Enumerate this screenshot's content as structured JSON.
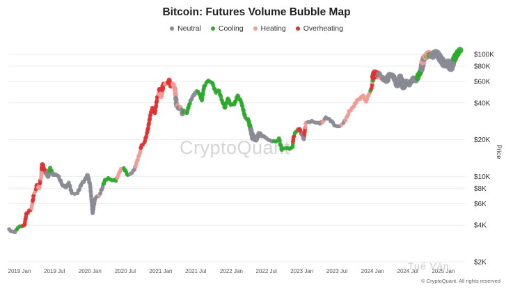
{
  "title": "Bitcoin: Futures Volume Bubble Map",
  "legend": [
    {
      "label": "Neutral",
      "color": "#8a8a94"
    },
    {
      "label": "Cooling",
      "color": "#2ea82e"
    },
    {
      "label": "Heating",
      "color": "#f29a94"
    },
    {
      "label": "Overheating",
      "color": "#e03131"
    }
  ],
  "watermark": "CryptoQuant",
  "credit": "© CryptoQuant. All rights reserved",
  "logo_text": "Tuế Văn",
  "chart_data": {
    "type": "scatter",
    "title": "Bitcoin: Futures Volume Bubble Map",
    "ylabel": "Price",
    "y_scale": "log",
    "ylim": [
      2000,
      130000
    ],
    "xlim": [
      "2019-01-01",
      "2025-06-01"
    ],
    "x_ticks": [
      "2019 Jan",
      "2019 Jul",
      "2020 Jan",
      "2020 Jul",
      "2021 Jan",
      "2021 Jul",
      "2022 Jan",
      "2022 Jul",
      "2023 Jan",
      "2023 Jul",
      "2024 Jan",
      "2024 Jul",
      "2025 Jan"
    ],
    "y_ticks": [
      {
        "value": 2000,
        "label": "$2K"
      },
      {
        "value": 4000,
        "label": "$4K"
      },
      {
        "value": 6000,
        "label": "$6K"
      },
      {
        "value": 8000,
        "label": "$8K"
      },
      {
        "value": 10000,
        "label": "$10K"
      },
      {
        "value": 20000,
        "label": "$20K"
      },
      {
        "value": 40000,
        "label": "$40K"
      },
      {
        "value": 60000,
        "label": "$60K"
      },
      {
        "value": 80000,
        "label": "$80K"
      },
      {
        "value": 100000,
        "label": "$100K"
      }
    ],
    "grid": "horizontal",
    "legend_position": "top-center",
    "series": [
      {
        "name": "Neutral",
        "color": "#8a8a94",
        "points": [
          [
            "2019-01-05",
            3700,
            1
          ],
          [
            "2019-01-20",
            3550,
            1
          ],
          [
            "2019-02-05",
            3500,
            1
          ],
          [
            "2019-07-25",
            10000,
            1.5
          ],
          [
            "2019-08-20",
            10400,
            1.5
          ],
          [
            "2019-09-15",
            10100,
            1
          ],
          [
            "2019-10-10",
            8400,
            1
          ],
          [
            "2019-10-25",
            8200,
            1.5
          ],
          [
            "2019-11-10",
            8900,
            1
          ],
          [
            "2019-11-25",
            7300,
            1
          ],
          [
            "2019-12-10",
            7200,
            1
          ],
          [
            "2019-12-25",
            7300,
            1
          ],
          [
            "2020-01-15",
            8700,
            1
          ],
          [
            "2020-02-01",
            9400,
            1
          ],
          [
            "2020-02-14",
            10200,
            1.5
          ],
          [
            "2020-02-28",
            8600,
            1
          ],
          [
            "2020-03-12",
            5000,
            1
          ],
          [
            "2020-03-25",
            6600,
            1
          ],
          [
            "2020-04-10",
            6900,
            1
          ],
          [
            "2020-04-28",
            7800,
            1
          ],
          [
            "2020-10-01",
            10700,
            1
          ],
          [
            "2020-10-15",
            11400,
            1
          ],
          [
            "2021-05-20",
            38000,
            1.5
          ],
          [
            "2021-06-01",
            36000,
            1.5
          ],
          [
            "2021-06-20",
            32500,
            1.5
          ],
          [
            "2021-07-05",
            34000,
            1
          ],
          [
            "2021-08-10",
            45000,
            1
          ],
          [
            "2021-08-25",
            48000,
            1.5
          ],
          [
            "2021-09-01",
            50000,
            1
          ],
          [
            "2022-06-20",
            20500,
            2
          ],
          [
            "2022-07-05",
            20000,
            2
          ],
          [
            "2022-07-20",
            22500,
            1.5
          ],
          [
            "2022-08-20",
            21000,
            1
          ],
          [
            "2022-09-15",
            19800,
            1
          ],
          [
            "2023-03-10",
            20200,
            1
          ],
          [
            "2023-04-01",
            28000,
            1
          ],
          [
            "2023-04-20",
            28500,
            1
          ],
          [
            "2023-05-10",
            27500,
            1
          ],
          [
            "2023-06-01",
            27000,
            1
          ],
          [
            "2023-07-01",
            30500,
            1
          ],
          [
            "2023-07-20",
            29500,
            1
          ],
          [
            "2023-08-20",
            26000,
            1
          ],
          [
            "2023-09-10",
            25800,
            1
          ],
          [
            "2023-10-01",
            27500,
            1
          ],
          [
            "2024-04-01",
            69000,
            2
          ],
          [
            "2024-04-20",
            64000,
            2
          ],
          [
            "2024-05-10",
            61000,
            2.5
          ],
          [
            "2024-05-25",
            68000,
            2
          ],
          [
            "2024-06-10",
            67000,
            2
          ],
          [
            "2024-06-25",
            61000,
            2
          ],
          [
            "2024-07-05",
            56000,
            2.5
          ],
          [
            "2024-07-20",
            66000,
            2
          ],
          [
            "2024-08-05",
            54000,
            2.5
          ],
          [
            "2024-08-20",
            60000,
            2
          ],
          [
            "2024-09-05",
            56500,
            2
          ],
          [
            "2024-09-25",
            63500,
            2
          ],
          [
            "2024-10-10",
            61000,
            2
          ],
          [
            "2024-11-10",
            80000,
            2.5
          ],
          [
            "2024-11-25",
            95000,
            2.5
          ],
          [
            "2025-01-05",
            97000,
            3
          ],
          [
            "2025-01-20",
            103000,
            3
          ],
          [
            "2025-02-05",
            97000,
            3
          ],
          [
            "2025-02-25",
            86000,
            3
          ],
          [
            "2025-03-10",
            82000,
            3
          ],
          [
            "2025-03-25",
            86000,
            3
          ],
          [
            "2025-04-08",
            77000,
            3
          ],
          [
            "2025-04-20",
            87000,
            2.5
          ]
        ]
      },
      {
        "name": "Cooling",
        "color": "#2ea82e",
        "points": [
          [
            "2019-02-20",
            3800,
            1
          ],
          [
            "2019-03-10",
            3900,
            1
          ],
          [
            "2019-08-05",
            11800,
            1
          ],
          [
            "2019-08-15",
            10800,
            1
          ],
          [
            "2020-05-15",
            9400,
            1
          ],
          [
            "2020-06-01",
            9700,
            1
          ],
          [
            "2020-06-20",
            9300,
            1
          ],
          [
            "2020-07-10",
            9200,
            1
          ],
          [
            "2020-08-20",
            11700,
            1
          ],
          [
            "2020-09-10",
            10300,
            1
          ],
          [
            "2021-06-28",
            34500,
            1
          ],
          [
            "2021-07-12",
            33000,
            1
          ],
          [
            "2021-07-25",
            39000,
            1
          ],
          [
            "2021-09-15",
            47500,
            1
          ],
          [
            "2021-09-28",
            42000,
            1
          ],
          [
            "2021-10-10",
            55000,
            1
          ],
          [
            "2021-11-01",
            61000,
            1
          ],
          [
            "2021-11-20",
            58500,
            1
          ],
          [
            "2021-12-10",
            48500,
            1
          ],
          [
            "2021-12-25",
            50500,
            1
          ],
          [
            "2022-01-10",
            42000,
            1
          ],
          [
            "2022-01-25",
            36500,
            1
          ],
          [
            "2022-02-10",
            43500,
            1
          ],
          [
            "2022-02-25",
            38500,
            1
          ],
          [
            "2022-03-15",
            39000,
            1
          ],
          [
            "2022-04-01",
            46000,
            1
          ],
          [
            "2022-04-20",
            40500,
            1
          ],
          [
            "2022-05-10",
            30500,
            1
          ],
          [
            "2022-05-25",
            29500,
            1
          ],
          [
            "2022-10-15",
            19300,
            1
          ],
          [
            "2022-11-01",
            20500,
            1
          ],
          [
            "2022-11-15",
            16500,
            1
          ],
          [
            "2022-12-05",
            17000,
            1
          ],
          [
            "2022-12-25",
            16800,
            1
          ],
          [
            "2023-01-10",
            17400,
            1
          ],
          [
            "2023-01-25",
            23000,
            1
          ],
          [
            "2024-02-20",
            51500,
            1
          ],
          [
            "2024-03-01",
            61500,
            1.5
          ],
          [
            "2024-10-25",
            68500,
            2
          ],
          [
            "2024-11-05",
            74000,
            2
          ],
          [
            "2024-12-05",
            97500,
            2
          ],
          [
            "2024-12-20",
            98000,
            2.5
          ],
          [
            "2025-05-01",
            96000,
            2.5
          ],
          [
            "2025-05-15",
            104000,
            2.5
          ],
          [
            "2025-05-25",
            108000,
            2.5
          ]
        ]
      },
      {
        "name": "Heating",
        "color": "#f29a94",
        "points": [
          [
            "2019-05-01",
            5500,
            1
          ],
          [
            "2019-05-20",
            7500,
            1
          ],
          [
            "2019-06-10",
            8000,
            1
          ],
          [
            "2019-06-20",
            10000,
            1
          ],
          [
            "2020-04-15",
            7000,
            1
          ],
          [
            "2020-07-25",
            10500,
            1
          ],
          [
            "2020-08-05",
            11500,
            1
          ],
          [
            "2020-10-25",
            13000,
            1
          ],
          [
            "2020-11-10",
            15300,
            1
          ],
          [
            "2021-02-15",
            47000,
            1
          ],
          [
            "2021-03-01",
            45000,
            1.5
          ],
          [
            "2021-04-01",
            58000,
            1.5
          ],
          [
            "2021-05-01",
            57000,
            1.5
          ],
          [
            "2021-05-12",
            52000,
            1.5
          ],
          [
            "2021-05-25",
            38000,
            1.5
          ],
          [
            "2021-06-10",
            37000,
            1
          ],
          [
            "2023-03-20",
            27500,
            1
          ],
          [
            "2023-06-20",
            28500,
            1
          ],
          [
            "2023-09-20",
            26500,
            1
          ],
          [
            "2023-10-20",
            31000,
            1
          ],
          [
            "2023-11-01",
            34500,
            1
          ],
          [
            "2023-11-20",
            37000,
            1
          ],
          [
            "2023-12-10",
            42000,
            1
          ],
          [
            "2023-12-25",
            43000,
            1
          ],
          [
            "2024-01-10",
            46000,
            1
          ],
          [
            "2024-01-25",
            41000,
            1
          ],
          [
            "2024-02-10",
            47500,
            1
          ],
          [
            "2024-02-28",
            60000,
            1
          ],
          [
            "2024-03-25",
            67000,
            1.5
          ],
          [
            "2024-04-15",
            63000,
            1
          ],
          [
            "2024-11-15",
            88000,
            2.5
          ],
          [
            "2024-12-01",
            96000,
            3
          ],
          [
            "2024-12-10",
            100000,
            3
          ],
          [
            "2024-12-15",
            101000,
            3
          ]
        ]
      },
      {
        "name": "Overheating",
        "color": "#e03131",
        "points": [
          [
            "2019-03-25",
            4000,
            1
          ],
          [
            "2019-04-05",
            5000,
            1
          ],
          [
            "2019-04-25",
            5300,
            1
          ],
          [
            "2019-05-12",
            7000,
            1
          ],
          [
            "2019-05-28",
            8500,
            1
          ],
          [
            "2019-06-15",
            9300,
            1
          ],
          [
            "2019-06-26",
            12500,
            1.5
          ],
          [
            "2019-07-05",
            11500,
            1
          ],
          [
            "2020-11-20",
            18000,
            1
          ],
          [
            "2020-12-05",
            19000,
            1
          ],
          [
            "2020-12-20",
            23000,
            1
          ],
          [
            "2021-01-05",
            32000,
            1
          ],
          [
            "2021-01-15",
            36500,
            1
          ],
          [
            "2021-01-28",
            33000,
            1
          ],
          [
            "2021-02-10",
            45000,
            1
          ],
          [
            "2021-02-20",
            52000,
            1
          ],
          [
            "2021-03-10",
            55000,
            1.5
          ],
          [
            "2021-03-15",
            57000,
            1.5
          ],
          [
            "2021-04-12",
            61500,
            1.5
          ],
          [
            "2021-04-20",
            55000,
            1.5
          ],
          [
            "2023-01-15",
            21000,
            1
          ],
          [
            "2023-02-15",
            24500,
            1
          ],
          [
            "2023-03-15",
            24000,
            1
          ],
          [
            "2024-02-25",
            55000,
            1
          ],
          [
            "2024-03-05",
            66000,
            2.5
          ],
          [
            "2024-03-12",
            70000,
            3
          ],
          [
            "2024-03-20",
            68000,
            3
          ],
          [
            "2024-03-28",
            69000,
            2.5
          ]
        ]
      }
    ]
  }
}
